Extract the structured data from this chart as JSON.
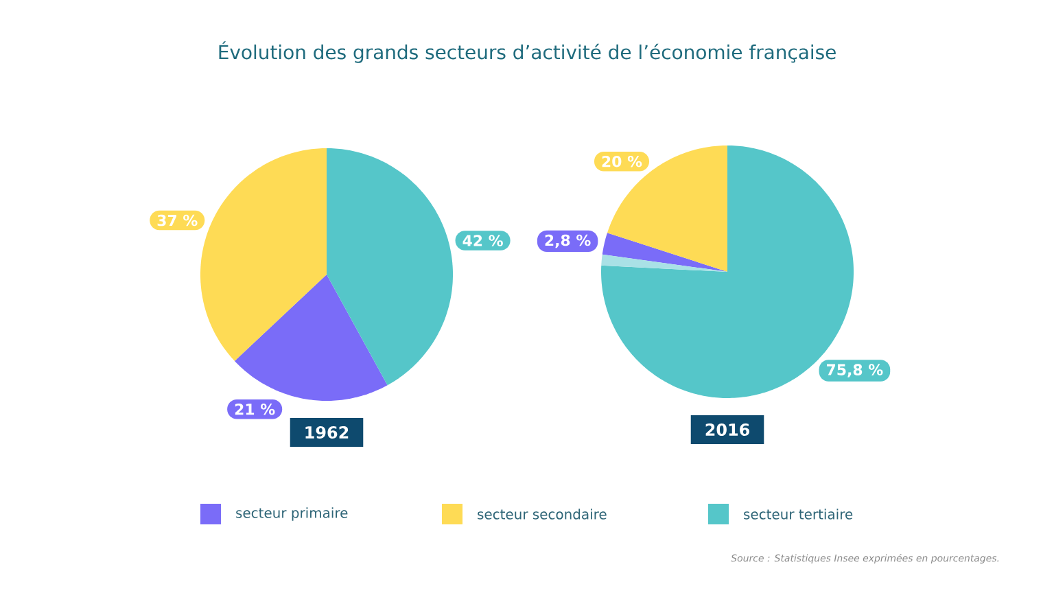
{
  "chart_data": [
    {
      "type": "pie",
      "title": "Évolution des grands secteurs d’activité de l’économie française",
      "xlabel": "1962",
      "categories": [
        "secteur primaire",
        "secteur secondaire",
        "secteur tertiaire"
      ],
      "values": [
        21,
        37,
        42
      ],
      "value_labels": [
        "21 %",
        "37 %",
        "42 %"
      ],
      "colors": [
        "#7a6cf8",
        "#fedb55",
        "#55c6c9"
      ],
      "legend": "bottom"
    },
    {
      "type": "pie",
      "xlabel": "2016",
      "categories": [
        null,
        null,
        null,
        null
      ],
      "values": [
        2.8,
        20,
        75.8,
        1.4
      ],
      "value_labels": [
        "2,8 %",
        "20 %",
        "75,8 %",
        null
      ],
      "colors": [
        "#7a6cf8",
        "#fedb55",
        "#55c6c9",
        "#a9e1e6"
      ],
      "annotations": [
        "Source : Statistiques Insee exprimées en pourcentages."
      ]
    }
  ]
}
